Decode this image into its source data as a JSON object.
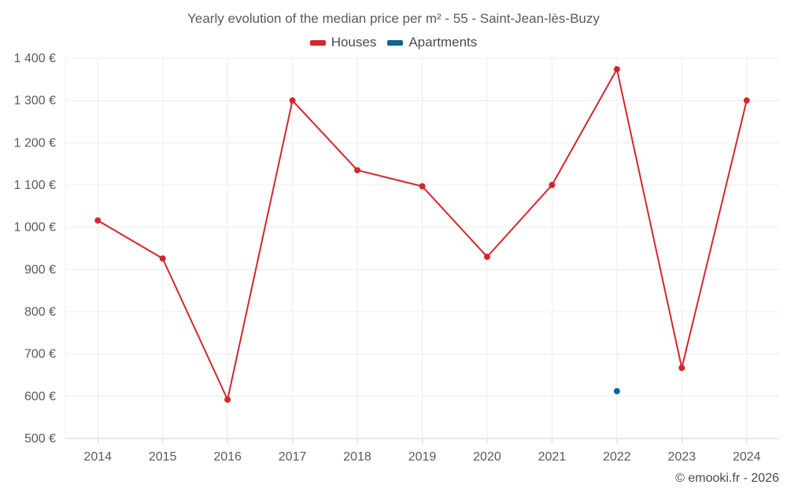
{
  "chart_data": {
    "type": "line",
    "title": "Yearly evolution of the median price per m² - 55 - Saint-Jean-lès-Buzy",
    "categories": [
      "2014",
      "2015",
      "2016",
      "2017",
      "2018",
      "2019",
      "2020",
      "2021",
      "2022",
      "2023",
      "2024"
    ],
    "y_ticks": [
      500,
      600,
      700,
      800,
      900,
      1000,
      1100,
      1200,
      1300,
      1400
    ],
    "y_tick_labels": [
      "500 €",
      "600 €",
      "700 €",
      "800 €",
      "900 €",
      "1 000 €",
      "1 100 €",
      "1 200 €",
      "1 300 €",
      "1 400 €"
    ],
    "ylim": [
      500,
      1400
    ],
    "grid": true,
    "legend_position": "top-center",
    "series": [
      {
        "name": "Houses",
        "color": "#d3272b",
        "values": [
          1016,
          926,
          592,
          1300,
          1135,
          1097,
          930,
          1100,
          1374,
          667,
          1300
        ]
      },
      {
        "name": "Apartments",
        "color": "#0e6499",
        "values": [
          null,
          null,
          null,
          null,
          null,
          null,
          null,
          null,
          612,
          null,
          null
        ]
      }
    ]
  },
  "footer": {
    "copyright": "© emooki.fr - 2026"
  }
}
